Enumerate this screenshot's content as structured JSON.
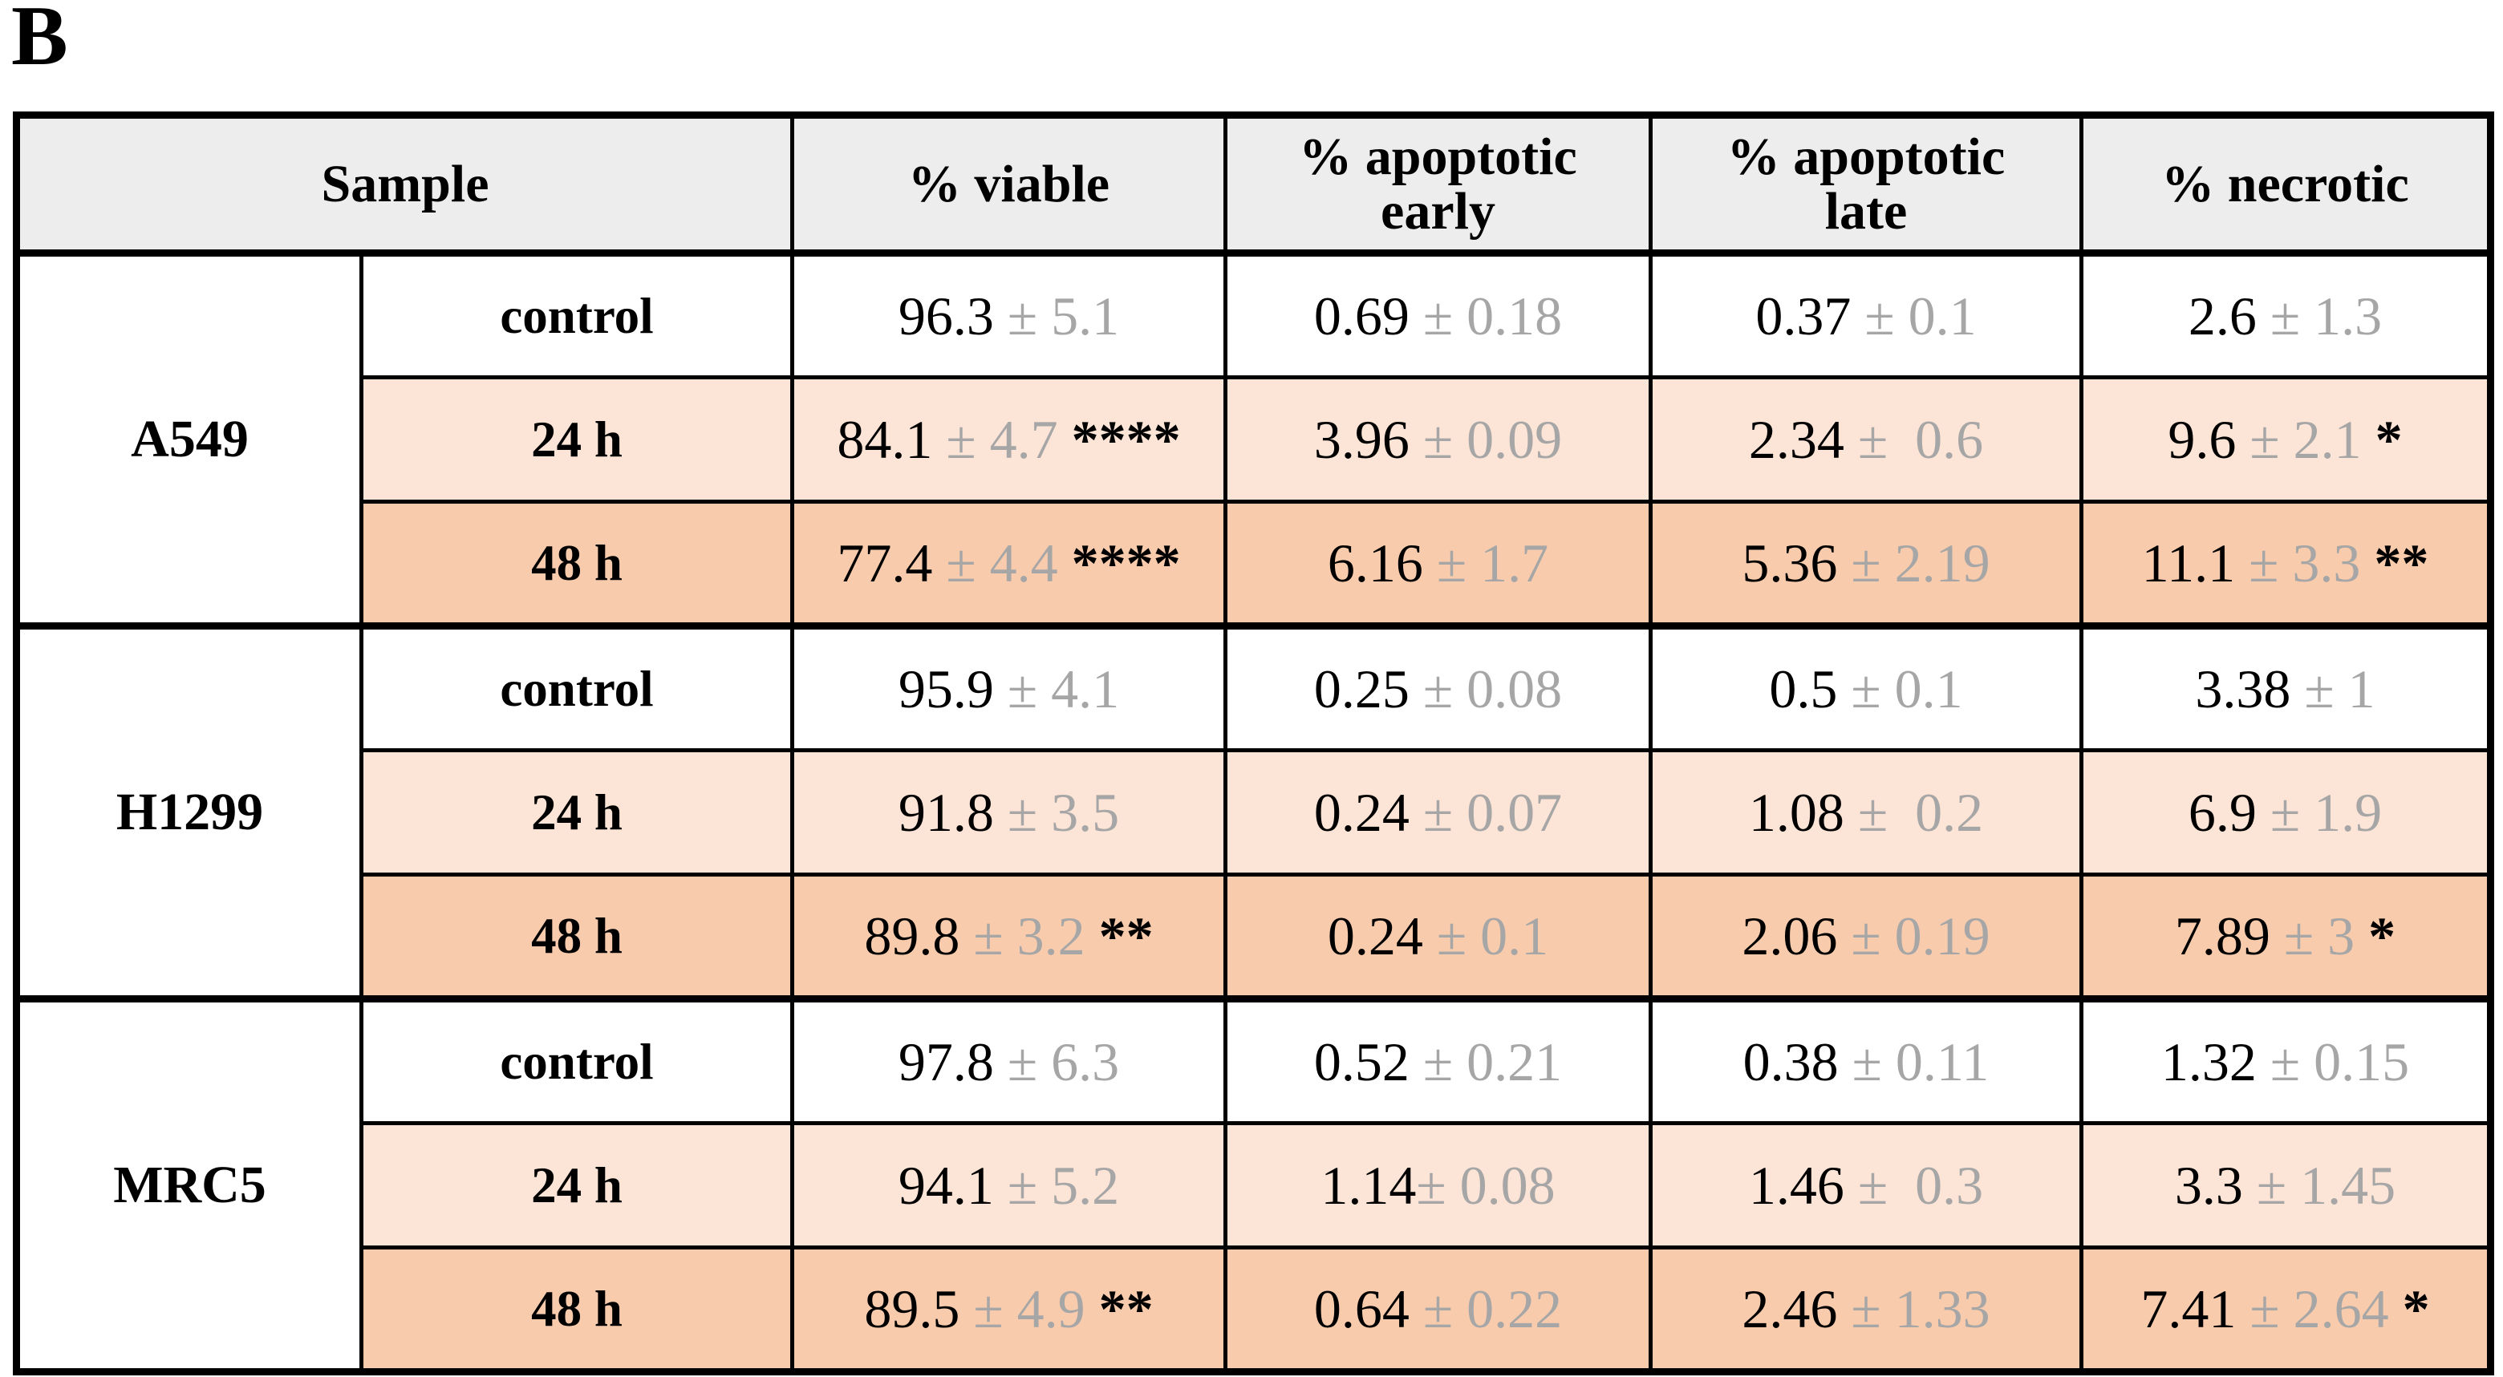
{
  "panel_label": "B",
  "colors": {
    "header_bg": "#ededed",
    "row_24h_bg": "#fce4d6",
    "row_48h_bg": "#f8cbad",
    "row_control_bg": "#ffffff",
    "border": "#000000",
    "value_text": "#000000",
    "sd_text": "#a6a6a6"
  },
  "table": {
    "headers": [
      "Sample",
      "% viable",
      "% apoptotic\nearly",
      "% apoptotic\nlate",
      "% necrotic"
    ],
    "groups": [
      {
        "name": "A549",
        "rows": [
          {
            "time": "control",
            "cells": [
              {
                "v": "96.3",
                "sd": " ± 5.1",
                "sig": ""
              },
              {
                "v": "0.69",
                "sd": " ± 0.18",
                "sig": ""
              },
              {
                "v": "0.37",
                "sd": " ± 0.1",
                "sig": ""
              },
              {
                "v": "2.6",
                "sd": " ± 1.3",
                "sig": ""
              }
            ]
          },
          {
            "time": "24 h",
            "cells": [
              {
                "v": "84.1",
                "sd": " ± 4.7",
                "sig": " ****"
              },
              {
                "v": "3.96",
                "sd": " ± 0.09",
                "sig": ""
              },
              {
                "v": "2.34",
                "sd": " ±  0.6",
                "sig": ""
              },
              {
                "v": "9.6",
                "sd": " ± 2.1",
                "sig": " *"
              }
            ]
          },
          {
            "time": "48 h",
            "cells": [
              {
                "v": "77.4",
                "sd": " ± 4.4",
                "sig": " ****"
              },
              {
                "v": "6.16",
                "sd": " ± 1.7",
                "sig": ""
              },
              {
                "v": "5.36",
                "sd": " ± 2.19",
                "sig": ""
              },
              {
                "v": "11.1",
                "sd": " ± 3.3",
                "sig": " **"
              }
            ]
          }
        ]
      },
      {
        "name": "H1299",
        "rows": [
          {
            "time": "control",
            "cells": [
              {
                "v": "95.9",
                "sd": " ± 4.1",
                "sig": ""
              },
              {
                "v": "0.25",
                "sd": " ± 0.08",
                "sig": ""
              },
              {
                "v": "0.5",
                "sd": " ± 0.1",
                "sig": ""
              },
              {
                "v": "3.38",
                "sd": " ± 1",
                "sig": ""
              }
            ]
          },
          {
            "time": "24 h",
            "cells": [
              {
                "v": "91.8",
                "sd": " ± 3.5",
                "sig": ""
              },
              {
                "v": "0.24",
                "sd": " ± 0.07",
                "sig": ""
              },
              {
                "v": "1.08",
                "sd": " ±  0.2",
                "sig": ""
              },
              {
                "v": "6.9",
                "sd": " ± 1.9",
                "sig": ""
              }
            ]
          },
          {
            "time": "48 h",
            "cells": [
              {
                "v": "89.8",
                "sd": " ± 3.2",
                "sig": " **"
              },
              {
                "v": "0.24",
                "sd": " ± 0.1",
                "sig": ""
              },
              {
                "v": "2.06",
                "sd": " ± 0.19",
                "sig": ""
              },
              {
                "v": "7.89",
                "sd": " ± 3",
                "sig": " *"
              }
            ]
          }
        ]
      },
      {
        "name": "MRC5",
        "rows": [
          {
            "time": "control",
            "cells": [
              {
                "v": "97.8",
                "sd": " ± 6.3",
                "sig": ""
              },
              {
                "v": "0.52",
                "sd": " ± 0.21",
                "sig": ""
              },
              {
                "v": "0.38",
                "sd": " ± 0.11",
                "sig": ""
              },
              {
                "v": "1.32",
                "sd": " ± 0.15",
                "sig": ""
              }
            ]
          },
          {
            "time": "24 h",
            "cells": [
              {
                "v": "94.1",
                "sd": " ± 5.2",
                "sig": ""
              },
              {
                "v": "1.14",
                "sd": "± 0.08",
                "sig": ""
              },
              {
                "v": "1.46",
                "sd": " ±  0.3",
                "sig": ""
              },
              {
                "v": "3.3",
                "sd": " ± 1.45",
                "sig": ""
              }
            ]
          },
          {
            "time": "48 h",
            "cells": [
              {
                "v": "89.5",
                "sd": " ± 4.9",
                "sig": " **"
              },
              {
                "v": "0.64",
                "sd": " ± 0.22",
                "sig": ""
              },
              {
                "v": "2.46",
                "sd": " ± 1.33",
                "sig": ""
              },
              {
                "v": "7.41",
                "sd": " ± 2.64",
                "sig": " *"
              }
            ]
          }
        ]
      }
    ]
  }
}
